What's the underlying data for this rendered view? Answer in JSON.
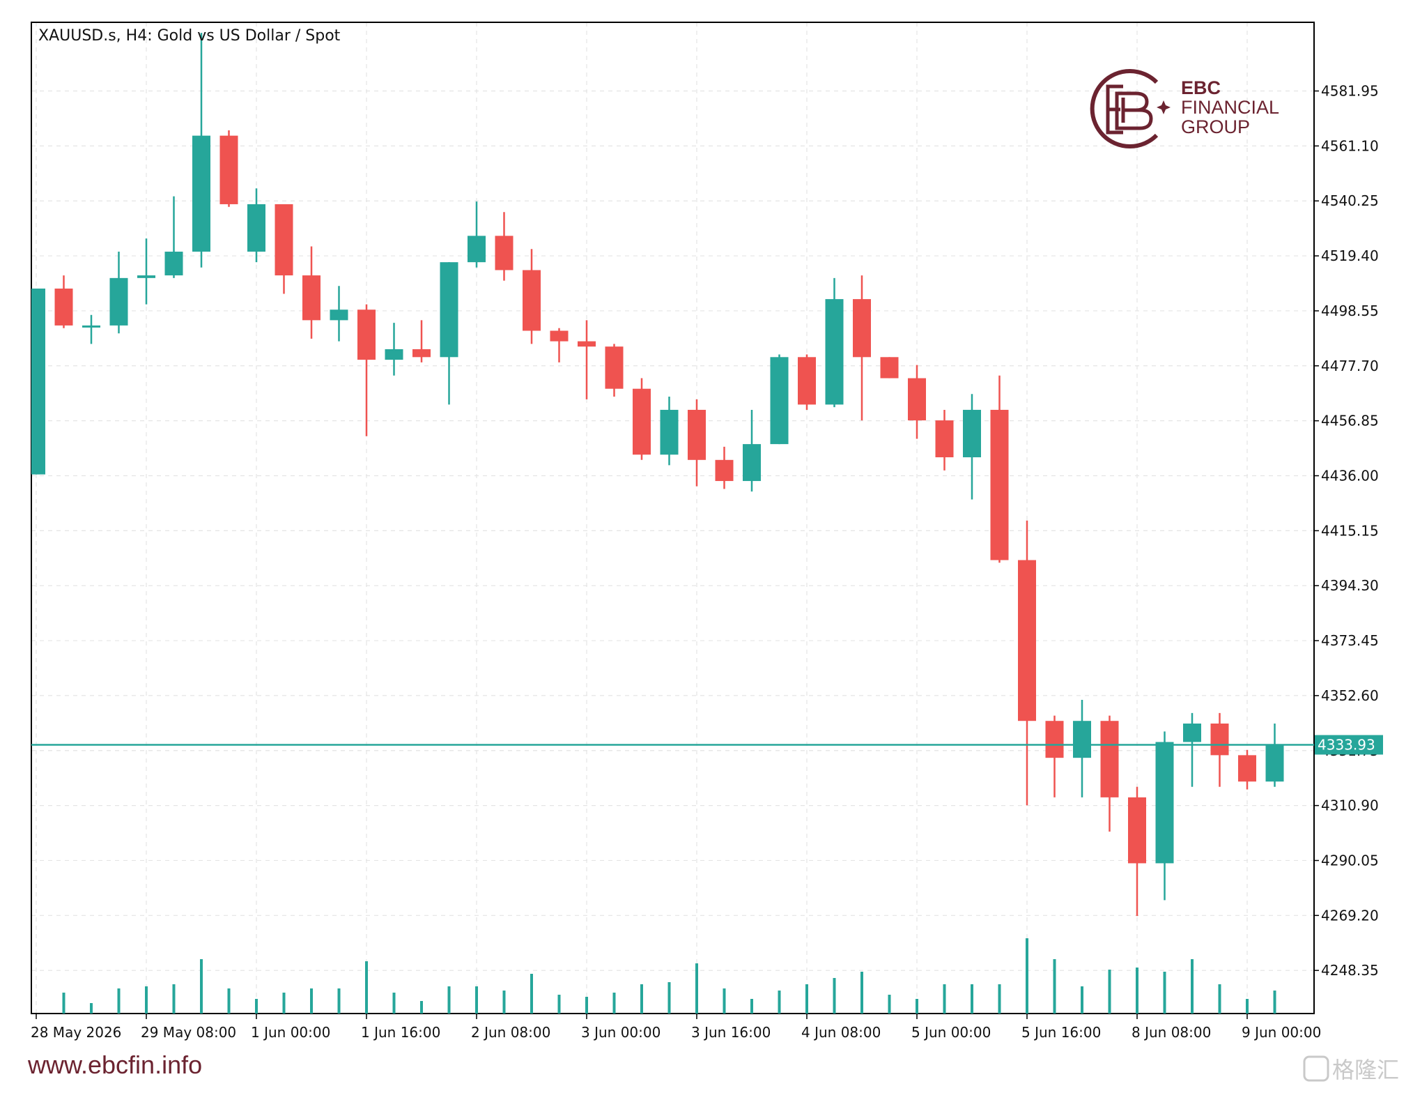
{
  "chart_data": {
    "type": "candlestick",
    "title": "XAUUSD.s, H4:  Gold vs US Dollar / Spot",
    "ylim": [
      4232,
      4608
    ],
    "y_ticks": [
      "4581.95",
      "4561.10",
      "4540.25",
      "4519.40",
      "4498.55",
      "4477.70",
      "4456.85",
      "4436.00",
      "4415.15",
      "4394.30",
      "4373.45",
      "4352.60",
      "4331.75",
      "4310.90",
      "4290.05",
      "4269.20",
      "4248.35"
    ],
    "x_tick_labels": [
      "28 May 2026",
      "29 May 08:00",
      "1 Jun 00:00",
      "1 Jun 16:00",
      "2 Jun 08:00",
      "3 Jun 00:00",
      "3 Jun 16:00",
      "4 Jun 08:00",
      "5 Jun 00:00",
      "5 Jun 16:00",
      "8 Jun 08:00",
      "9 Jun 00:00"
    ],
    "x_tick_bar_index": [
      0,
      4,
      8,
      12,
      16,
      20,
      24,
      28,
      32,
      36,
      40,
      44
    ],
    "current_price": "4333.93",
    "grid": true,
    "up_color": "#26a69a",
    "down_color": "#ef5350",
    "ohlc": [
      [
        4436.5,
        4507.0,
        4436.5,
        4507.0
      ],
      [
        4507.0,
        4512.0,
        4492.0,
        4493.0
      ],
      [
        4493.0,
        4497.0,
        4486.0,
        4493.0
      ],
      [
        4493.0,
        4521.0,
        4490.0,
        4511.0
      ],
      [
        4511.0,
        4526.0,
        4501.0,
        4512.0
      ],
      [
        4512.0,
        4542.0,
        4511.0,
        4521.0
      ],
      [
        4521.0,
        4604.0,
        4515.0,
        4565.0
      ],
      [
        4565.0,
        4567.0,
        4538.0,
        4539.0
      ],
      [
        4521.0,
        4545.0,
        4517.0,
        4539.0
      ],
      [
        4539.0,
        4539.0,
        4505.0,
        4512.0
      ],
      [
        4512.0,
        4523.0,
        4488.0,
        4495.0
      ],
      [
        4495.0,
        4508.0,
        4487.0,
        4499.0
      ],
      [
        4499.0,
        4501.0,
        4451.0,
        4480.0
      ],
      [
        4480.0,
        4494.0,
        4474.0,
        4484.0
      ],
      [
        4484.0,
        4495.0,
        4479.0,
        4481.0
      ],
      [
        4481.0,
        4517.0,
        4463.0,
        4517.0
      ],
      [
        4517.0,
        4540.0,
        4515.0,
        4527.0
      ],
      [
        4527.0,
        4536.0,
        4510.0,
        4514.0
      ],
      [
        4514.0,
        4522.0,
        4486.0,
        4491.0
      ],
      [
        4491.0,
        4492.0,
        4479.0,
        4487.0
      ],
      [
        4487.0,
        4495.0,
        4465.0,
        4485.0
      ],
      [
        4485.0,
        4486.0,
        4466.0,
        4469.0
      ],
      [
        4469.0,
        4473.0,
        4442.0,
        4444.0
      ],
      [
        4444.0,
        4466.0,
        4440.0,
        4461.0
      ],
      [
        4461.0,
        4465.0,
        4432.0,
        4442.0
      ],
      [
        4442.0,
        4447.0,
        4431.0,
        4434.0
      ],
      [
        4434.0,
        4461.0,
        4430.0,
        4448.0
      ],
      [
        4448.0,
        4482.0,
        4448.0,
        4481.0
      ],
      [
        4481.0,
        4482.0,
        4461.0,
        4463.0
      ],
      [
        4463.0,
        4511.0,
        4462.0,
        4503.0
      ],
      [
        4503.0,
        4512.0,
        4457.0,
        4481.0
      ],
      [
        4481.0,
        4481.0,
        4473.0,
        4473.0
      ],
      [
        4473.0,
        4478.0,
        4450.0,
        4457.0
      ],
      [
        4457.0,
        4461.0,
        4438.0,
        4443.0
      ],
      [
        4443.0,
        4467.0,
        4427.0,
        4461.0
      ],
      [
        4461.0,
        4474.0,
        4403.0,
        4404.0
      ],
      [
        4404.0,
        4419.0,
        4311.0,
        4343.0
      ],
      [
        4343.0,
        4345.0,
        4314.0,
        4329.0
      ],
      [
        4329.0,
        4351.0,
        4314.0,
        4343.0
      ],
      [
        4343.0,
        4345.0,
        4301.0,
        4314.0
      ],
      [
        4314.0,
        4318.0,
        4269.0,
        4289.0
      ],
      [
        4289.0,
        4339.0,
        4275.0,
        4335.0
      ],
      [
        4335.0,
        4346.0,
        4318.0,
        4342.0
      ],
      [
        4342.0,
        4346.0,
        4318.0,
        4330.0
      ],
      [
        4330.0,
        4332.0,
        4317.0,
        4320.0
      ],
      [
        4320.0,
        4342.0,
        4318.0,
        4334.0
      ]
    ],
    "volume": [
      0,
      10,
      5,
      12,
      13,
      14,
      26,
      12,
      7,
      10,
      12,
      12,
      25,
      10,
      6,
      13,
      13,
      11,
      19,
      9,
      8,
      10,
      14,
      15,
      24,
      12,
      7,
      11,
      14,
      17,
      20,
      9,
      7,
      14,
      14,
      14,
      36,
      26,
      13,
      21,
      22,
      20,
      26,
      14,
      7,
      11
    ]
  },
  "logo": {
    "line1": "EBC",
    "line2": "FINANCIAL",
    "line3": "GROUP"
  },
  "website": "www.ebcfin.info",
  "watermark": "格隆汇"
}
